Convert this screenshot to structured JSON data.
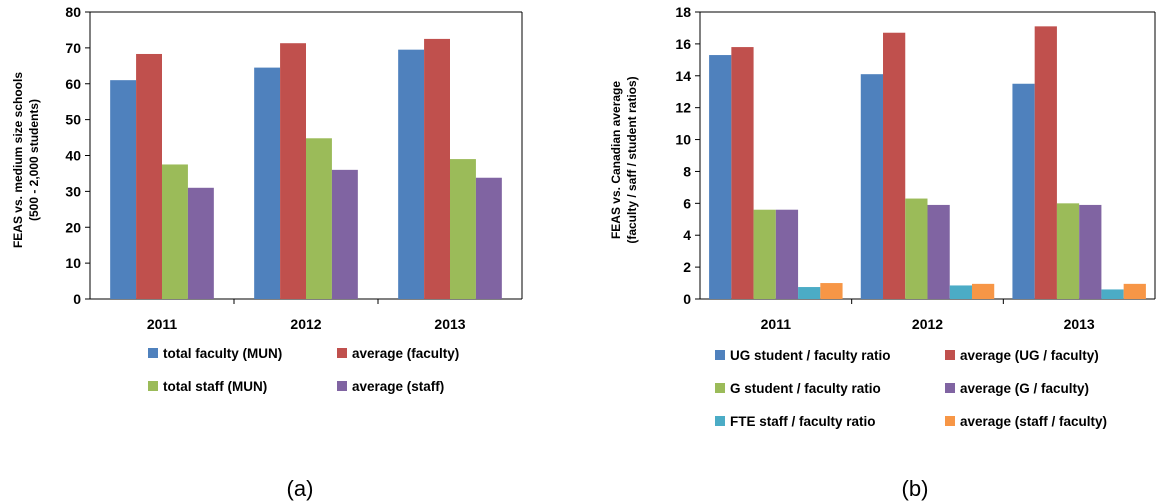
{
  "chart_data": [
    {
      "type": "bar",
      "panel_label": "(a)",
      "categories": [
        "2011",
        "2012",
        "2013"
      ],
      "ylabel": [
        "FEAS vs. medium size schools",
        "(500 - 2,000 students)"
      ],
      "ylim": [
        0,
        80
      ],
      "yticks": [
        0,
        10,
        20,
        30,
        40,
        50,
        60,
        70,
        80
      ],
      "grid": false,
      "legend_position": "bottom",
      "series": [
        {
          "name": "total faculty (MUN)",
          "color": "#4F81BD",
          "values": [
            61,
            64.5,
            69.5
          ]
        },
        {
          "name": "average (faculty)",
          "color": "#C0504D",
          "values": [
            68.3,
            71.3,
            72.5
          ]
        },
        {
          "name": "total staff (MUN)",
          "color": "#9BBB59",
          "values": [
            37.5,
            44.8,
            39
          ]
        },
        {
          "name": "average (staff)",
          "color": "#8064A2",
          "values": [
            31,
            36,
            33.8
          ]
        }
      ]
    },
    {
      "type": "bar",
      "panel_label": "(b)",
      "categories": [
        "2011",
        "2012",
        "2013"
      ],
      "ylabel": [
        "FEAS vs. Canadian average",
        "(faculty / saff / student ratios)"
      ],
      "ylim": [
        0,
        18
      ],
      "yticks": [
        0,
        2,
        4,
        6,
        8,
        10,
        12,
        14,
        16,
        18
      ],
      "grid": false,
      "legend_position": "bottom",
      "series": [
        {
          "name": "UG student / faculty ratio",
          "color": "#4F81BD",
          "values": [
            15.3,
            14.1,
            13.5
          ]
        },
        {
          "name": "average (UG / faculty)",
          "color": "#C0504D",
          "values": [
            15.8,
            16.7,
            17.1
          ]
        },
        {
          "name": "G student / faculty ratio",
          "color": "#9BBB59",
          "values": [
            5.6,
            6.3,
            6
          ]
        },
        {
          "name": "average (G / faculty)",
          "color": "#8064A2",
          "values": [
            5.6,
            5.9,
            5.9
          ]
        },
        {
          "name": "FTE staff / faculty ratio",
          "color": "#4BACC6",
          "values": [
            0.75,
            0.85,
            0.6
          ]
        },
        {
          "name": "average (staff / faculty)",
          "color": "#F79646",
          "values": [
            1,
            0.95,
            0.95
          ]
        }
      ]
    }
  ]
}
